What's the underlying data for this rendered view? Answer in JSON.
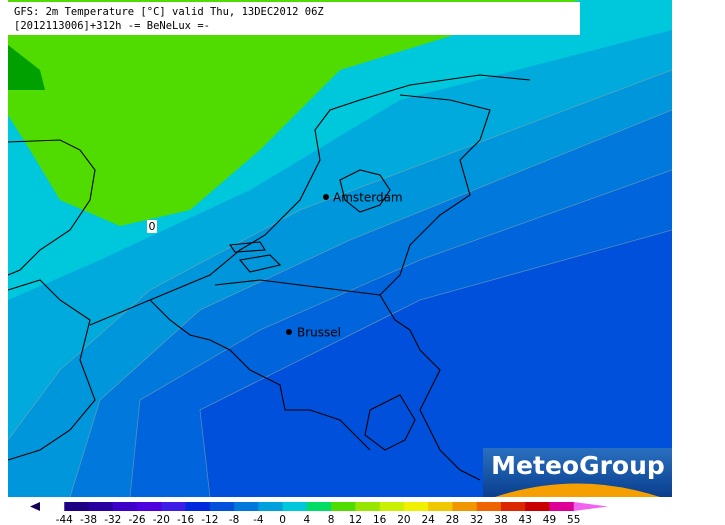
{
  "header": {
    "line1": "GFS: 2m Temperature [°C] valid Thu, 13DEC2012 06Z",
    "line2": "[2012113006]+312h  -= BeNeLux =-"
  },
  "map": {
    "cities": [
      {
        "name": "Amsterdam"
      },
      {
        "name": "Brussel"
      }
    ],
    "contour_label": "0"
  },
  "logo": "MeteoGroup",
  "legend": {
    "labels": [
      -44,
      -38,
      -32,
      -26,
      -20,
      -16,
      -12,
      -8,
      -4,
      0,
      4,
      8,
      12,
      16,
      20,
      24,
      28,
      32,
      38,
      43,
      49,
      55
    ],
    "colors": [
      "#14005a",
      "#1e0082",
      "#2800a0",
      "#3c00c8",
      "#5000dc",
      "#3c1ee6",
      "#0028dc",
      "#0050dc",
      "#0078dc",
      "#00a0dc",
      "#00c8dc",
      "#00dc64",
      "#50dc00",
      "#96e600",
      "#c8f000",
      "#f0f000",
      "#f0c800",
      "#f09600",
      "#f06400",
      "#dc2800",
      "#c80000",
      "#dc0096",
      "#f064f0"
    ]
  }
}
